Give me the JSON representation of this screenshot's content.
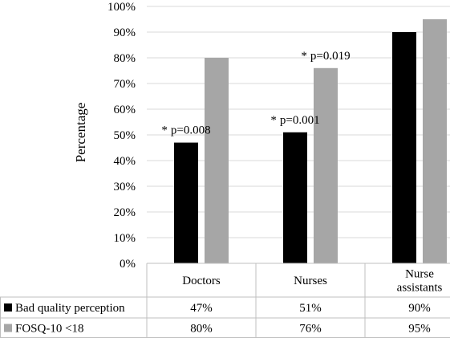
{
  "chart_data": {
    "type": "bar",
    "ylabel": "Percentage",
    "ylim": [
      0,
      100
    ],
    "yticks": [
      "0%",
      "10%",
      "20%",
      "30%",
      "40%",
      "50%",
      "60%",
      "70%",
      "80%",
      "90%",
      "100%"
    ],
    "categories": [
      "Doctors",
      "Nurses",
      "Nurse assistants"
    ],
    "category_lines": [
      [
        "Doctors"
      ],
      [
        "Nurses"
      ],
      [
        "Nurse",
        "assistants"
      ]
    ],
    "grid": true,
    "legend": "table-left",
    "series": [
      {
        "name": "Bad quality perception",
        "values": [
          47,
          51,
          90
        ],
        "labels": [
          "47%",
          "51%",
          "90%"
        ],
        "color": "#000000"
      },
      {
        "name": "FOSQ-10 <18",
        "values": [
          80,
          76,
          95
        ],
        "labels": [
          "80%",
          "76%",
          "95%"
        ],
        "color": "#a6a6a6"
      }
    ],
    "annotations": [
      {
        "category": "Doctors",
        "series": "Bad quality perception",
        "text": "p=0.008",
        "marker": "*"
      },
      {
        "category": "Nurses",
        "series": "Bad quality perception",
        "text": "p=0.001",
        "marker": "*"
      },
      {
        "category": "Nurses",
        "series": "FOSQ-10 <18",
        "text": "p=0.019",
        "marker": "*"
      }
    ]
  }
}
